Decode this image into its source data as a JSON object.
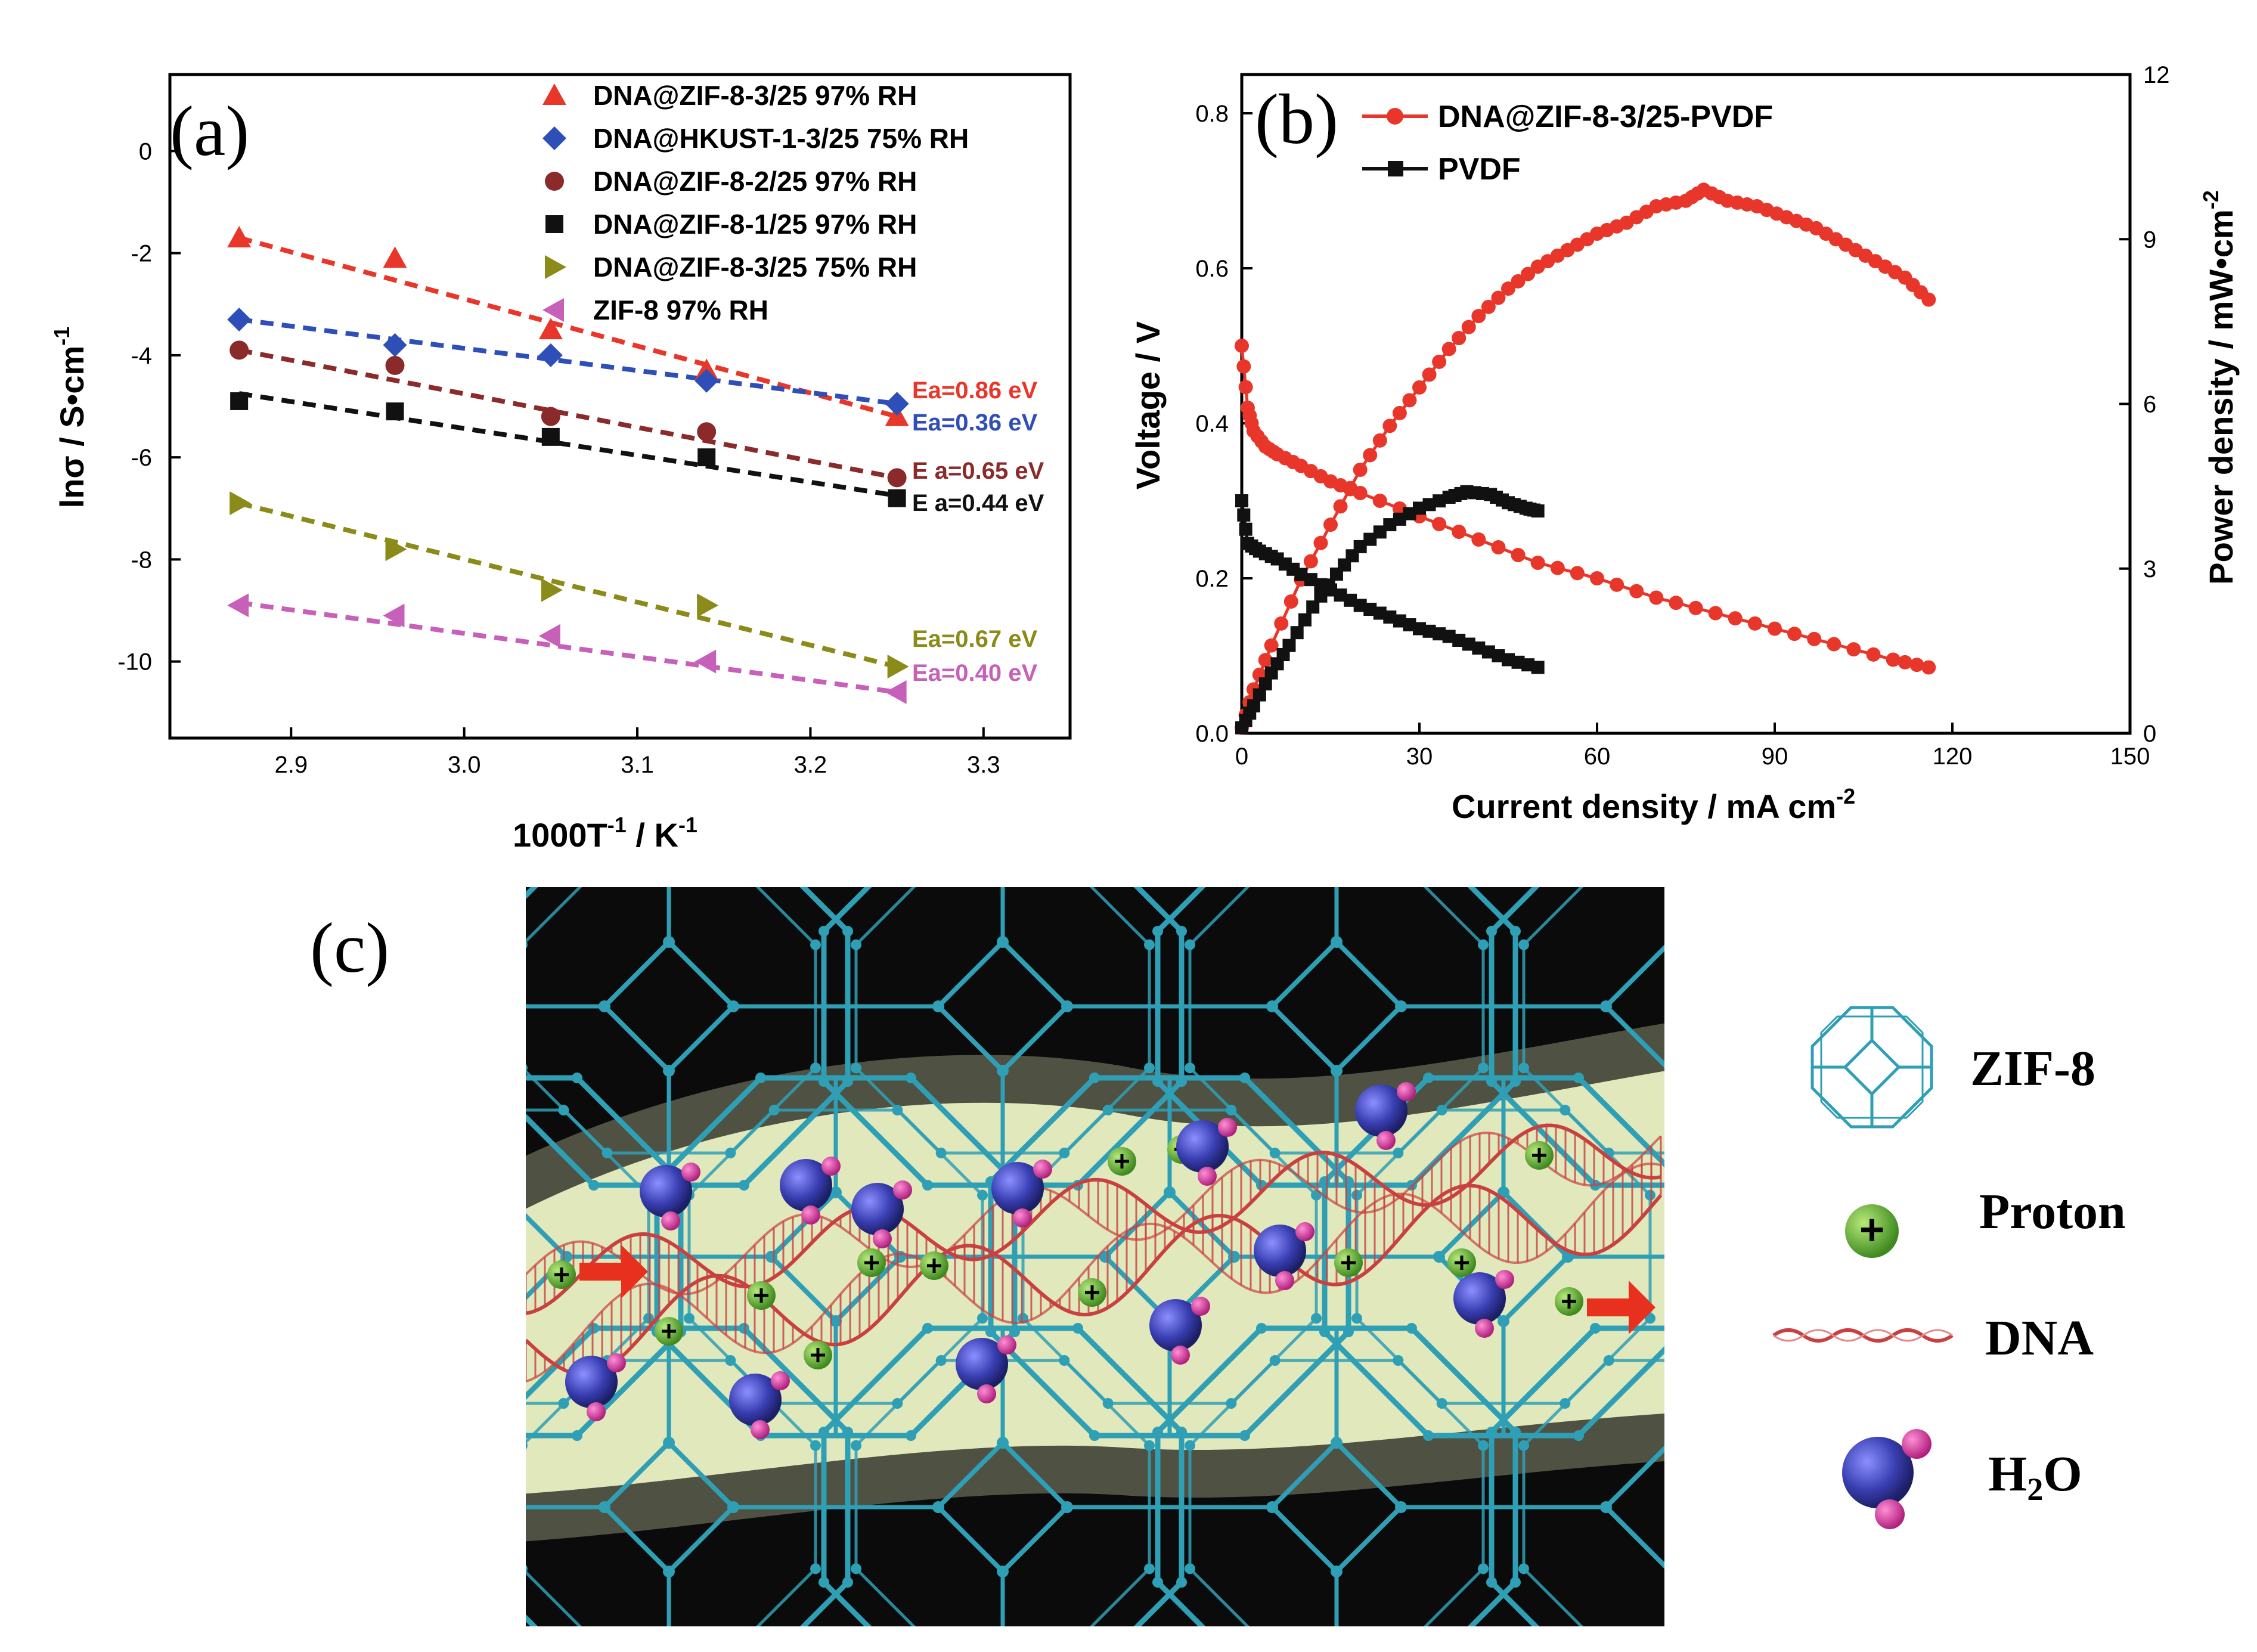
{
  "chart_data": [
    {
      "panel": "(a)",
      "type": "scatter",
      "xlabel": "1000T-1 / K-1",
      "xlabel_main": "1000T",
      "xlabel_sup1": "-1",
      "xlabel_mid": " / K",
      "xlabel_sup2": "-1",
      "ylabel": "lnσ / S•cm-1",
      "ylabel_main": "lnσ / S•cm",
      "ylabel_sup": "-1",
      "xlim": [
        2.83,
        3.35
      ],
      "ylim": [
        -11.5,
        1.5
      ],
      "xticks": [
        2.9,
        3.0,
        3.1,
        3.2,
        3.3
      ],
      "xtick_labels": [
        "2.9",
        "3.0",
        "3.1",
        "3.2",
        "3.3"
      ],
      "yticks": [
        0,
        -2,
        -4,
        -6,
        -8,
        -10
      ],
      "ytick_labels": [
        "0",
        "-2",
        "-4",
        "-6",
        "-8",
        "-10"
      ],
      "x": [
        2.87,
        2.96,
        3.05,
        3.14,
        3.25
      ],
      "legend_position": "top-right",
      "series": [
        {
          "name": "DNA@ZIF-8-3/25  97%  RH",
          "marker": "triangle-up",
          "color": "#e8372a",
          "values": [
            -1.7,
            -2.1,
            -3.5,
            -4.3,
            -5.2
          ],
          "fit": [
            -1.7,
            -5.2
          ],
          "ea": "Ea=0.86 eV"
        },
        {
          "name": "DNA@HKUST-1-3/25  75%  RH",
          "marker": "diamond",
          "color": "#2f4fb8",
          "values": [
            -3.3,
            -3.8,
            -4.0,
            -4.5,
            -4.95
          ],
          "fit": [
            -3.3,
            -4.95
          ],
          "ea": "Ea=0.36 eV"
        },
        {
          "name": "DNA@ZIF-8-2/25  97%  RH",
          "marker": "circle",
          "color": "#8b2a2a",
          "values": [
            -3.9,
            -4.2,
            -5.2,
            -5.5,
            -6.4
          ],
          "fit": [
            -3.9,
            -6.4
          ],
          "ea": "E a=0.65 eV"
        },
        {
          "name": "DNA@ZIF-8-1/25  97%  RH",
          "marker": "square",
          "color": "#111111",
          "values": [
            -4.9,
            -5.1,
            -5.6,
            -6.0,
            -6.8
          ],
          "fit": [
            -4.75,
            -6.75
          ],
          "ea": "E a=0.44 eV"
        },
        {
          "name": "DNA@ZIF-8-3/25  75%  RH",
          "marker": "triangle-right",
          "color": "#8b8b1a",
          "values": [
            -6.9,
            -7.8,
            -8.6,
            -8.9,
            -10.1
          ],
          "fit": [
            -6.9,
            -10.1
          ],
          "ea": "Ea=0.67 eV"
        },
        {
          "name": "ZIF-8  97%  RH",
          "marker": "triangle-left",
          "color": "#c760b8",
          "values": [
            -8.9,
            -9.1,
            -9.5,
            -10.0,
            -10.6
          ],
          "fit": [
            -8.85,
            -10.6
          ],
          "ea": "Ea=0.40 eV"
        }
      ]
    },
    {
      "panel": "(b)",
      "type": "line",
      "xlabel": "Current density / mA cm-2",
      "xlabel_main": "Current density / mA cm",
      "xlabel_sup": "-2",
      "ylabel_left": "Voltage / V",
      "ylabel_right": "Power density / mW•cm-2",
      "ylabel_right_main": "Power density / mW•cm",
      "ylabel_right_sup": "-2",
      "xlim": [
        0,
        150
      ],
      "ylim_left": [
        0,
        0.85
      ],
      "ylim_right": [
        0,
        12
      ],
      "xticks": [
        0,
        30,
        60,
        90,
        120,
        150
      ],
      "xtick_labels": [
        "0",
        "30",
        "60",
        "90",
        "120",
        "150"
      ],
      "yticks_left": [
        0.0,
        0.2,
        0.4,
        0.6,
        0.8
      ],
      "ytick_left_labels": [
        "0.0",
        "0.2",
        "0.4",
        "0.6",
        "0.8"
      ],
      "yticks_right": [
        0,
        3,
        6,
        9,
        12
      ],
      "ytick_right_labels": [
        "0",
        "3",
        "6",
        "9",
        "12"
      ],
      "legend_position": "top-left",
      "series": [
        {
          "name": "DNA@ZIF-8-3/25-PVDF",
          "color": "#e8372a",
          "marker": "circle",
          "polarization": {
            "x": [
              0,
              1,
              2,
              4,
              6,
              10,
              15,
              20,
              30,
              40,
              50,
              60,
              70,
              80,
              90,
              100,
              110,
              116
            ],
            "y": [
              0.5,
              0.42,
              0.39,
              0.37,
              0.36,
              0.345,
              0.325,
              0.31,
              0.28,
              0.25,
              0.22,
              0.2,
              0.175,
              0.155,
              0.135,
              0.115,
              0.095,
              0.085
            ]
          },
          "power": {
            "x": [
              0,
              2,
              5,
              10,
              15,
              20,
              25,
              30,
              35,
              40,
              45,
              50,
              55,
              60,
              65,
              70,
              75,
              78,
              82,
              87,
              92,
              97,
              102,
              107,
              112,
              116
            ],
            "y": [
              0.1,
              0.8,
              1.6,
              2.8,
              3.8,
              4.8,
              5.6,
              6.3,
              7.0,
              7.6,
              8.1,
              8.5,
              8.8,
              9.1,
              9.3,
              9.6,
              9.7,
              9.9,
              9.7,
              9.6,
              9.4,
              9.2,
              8.9,
              8.6,
              8.3,
              7.9
            ]
          }
        },
        {
          "name": "PVDF",
          "color": "#111111",
          "marker": "square",
          "polarization": {
            "x": [
              0,
              1,
              3,
              6,
              10,
              15,
              20,
              25,
              30,
              35,
              40,
              45,
              50
            ],
            "y": [
              0.3,
              0.245,
              0.235,
              0.225,
              0.205,
              0.185,
              0.165,
              0.15,
              0.135,
              0.125,
              0.11,
              0.095,
              0.085
            ]
          },
          "power": {
            "x": [
              0,
              2,
              5,
              8,
              12,
              16,
              20,
              25,
              30,
              35,
              38,
              42,
              45,
              48,
              50
            ],
            "y": [
              0.1,
              0.5,
              1.1,
              1.6,
              2.3,
              2.9,
              3.4,
              3.8,
              4.1,
              4.3,
              4.4,
              4.35,
              4.2,
              4.1,
              4.05
            ]
          }
        }
      ]
    }
  ],
  "labels": {
    "panel_a": "(a)",
    "panel_b": "(b)",
    "panel_c": "(c)"
  },
  "schematic": {
    "legend": [
      {
        "label": "ZIF-8",
        "icon": "zif8-cage-icon"
      },
      {
        "label": "Proton",
        "icon": "proton-icon"
      },
      {
        "label": "DNA",
        "icon": "dna-helix-icon"
      },
      {
        "label": "H2O",
        "label_main": "H",
        "label_sub": "2",
        "label_end": "O",
        "icon": "water-molecule-icon"
      }
    ],
    "proton_symbol": "+",
    "colors": {
      "framework": "#2f9fb5",
      "glow": "#f4f9d6",
      "proton": "#5aa832",
      "water": "#3a3fb3",
      "hydrogen": "#d23aa0",
      "dna": "#c94040",
      "arrow": "#e8301e",
      "background": "#0b0b0b"
    }
  }
}
